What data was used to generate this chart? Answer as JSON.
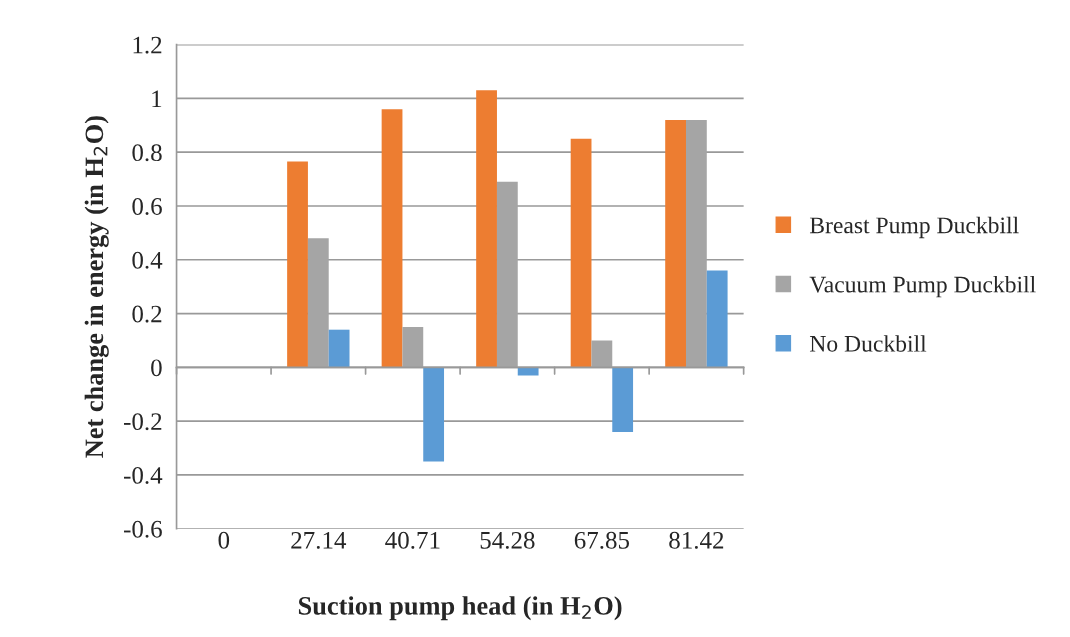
{
  "chart_data": {
    "type": "bar",
    "xlabel": "Suction pump head (in H$_{2}$O)",
    "ylabel": "Net change in energy (in H$_{2}$O)",
    "categories": [
      "0",
      "27.14",
      "40.71",
      "54.28",
      "67.85",
      "81.42"
    ],
    "series": [
      {
        "name": "Breast Pump Duckbill",
        "color": "#ed7d31",
        "values": [
          0,
          0.765,
          0.96,
          1.03,
          0.85,
          0.92
        ]
      },
      {
        "name": "Vacuum Pump Duckbill",
        "color": "#a5a5a5",
        "values": [
          0,
          0.48,
          0.15,
          0.69,
          0.1,
          0.92
        ]
      },
      {
        "name": "No Duckbill",
        "color": "#5b9bd5",
        "values": [
          0,
          0.14,
          -0.35,
          -0.03,
          -0.24,
          0.36
        ]
      }
    ],
    "ylim": [
      -0.6,
      1.2
    ],
    "yticks": [
      -0.6,
      -0.4,
      -0.2,
      0,
      0.2,
      0.4,
      0.6,
      0.8,
      1,
      1.2
    ],
    "grid": "y",
    "legend": "right"
  }
}
